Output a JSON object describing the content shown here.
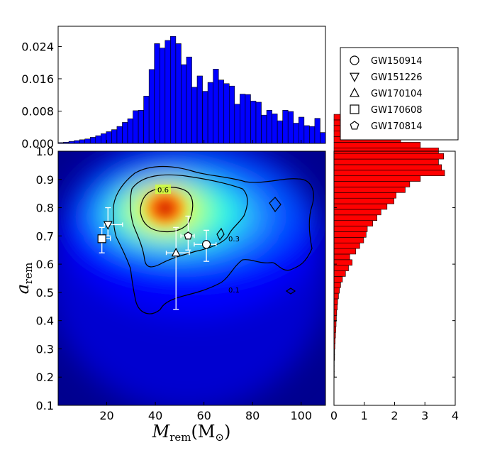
{
  "chart_data": [
    {
      "type": "heatmap",
      "xlabel": "M",
      "xlabel_sub": "rem",
      "xlabel_unit_open": "(M",
      "xlabel_unit_sub": "⊙",
      "xlabel_unit_close": ")",
      "ylabel": "a",
      "ylabel_sub": "rem",
      "xlim": [
        0,
        110
      ],
      "ylim": [
        0.1,
        1.0
      ],
      "x_ticks": [
        20,
        40,
        60,
        80,
        100
      ],
      "y_ticks": [
        0.1,
        0.2,
        0.3,
        0.4,
        0.5,
        0.6,
        0.7,
        0.8,
        0.9,
        1.0
      ],
      "contour_labels": [
        "0.6",
        "0.3",
        "0.1"
      ],
      "colormap": [
        "#00008f",
        "#0000ff",
        "#007fff",
        "#00ffff",
        "#7fff7f",
        "#ffff00",
        "#ff7f00",
        "#ff0000",
        "#7f0000"
      ],
      "density_peak": {
        "x": 44,
        "y": 0.79
      },
      "events": [
        {
          "name": "GW150914",
          "marker": "circle",
          "x": 61,
          "y": 0.67,
          "x_err": [
            5,
            4
          ],
          "y_err": [
            0.06,
            0.05
          ]
        },
        {
          "name": "GW151226",
          "marker": "triangle-down",
          "x": 20.5,
          "y": 0.74,
          "x_err": [
            1.5,
            6
          ],
          "y_err": [
            0.04,
            0.06
          ]
        },
        {
          "name": "GW170104",
          "marker": "triangle-up",
          "x": 48.5,
          "y": 0.64,
          "x_err": [
            4,
            5.5
          ],
          "y_err": [
            0.2,
            0.09
          ]
        },
        {
          "name": "GW170608",
          "marker": "square",
          "x": 18,
          "y": 0.69,
          "x_err": [
            1,
            3.5
          ],
          "y_err": [
            0.05,
            0.04
          ]
        },
        {
          "name": "GW170814",
          "marker": "pentagon",
          "x": 53.5,
          "y": 0.7,
          "x_err": [
            3,
            2.5
          ],
          "y_err": [
            0.05,
            0.07
          ]
        }
      ]
    },
    {
      "type": "bar",
      "orientation": "vertical",
      "color": "#0000ff",
      "y_ticks": [
        "0.000",
        "0.008",
        "0.016",
        "0.024"
      ],
      "ylim": [
        0,
        0.029
      ],
      "xlim": [
        0,
        110
      ],
      "bin_width": 2.2,
      "values": [
        0.0002,
        0.0003,
        0.0005,
        0.0007,
        0.0009,
        0.0011,
        0.0015,
        0.0019,
        0.0024,
        0.0029,
        0.0034,
        0.0042,
        0.0052,
        0.0061,
        0.0081,
        0.0082,
        0.0117,
        0.0183,
        0.0247,
        0.0236,
        0.0255,
        0.0265,
        0.0247,
        0.0195,
        0.0214,
        0.0139,
        0.0167,
        0.0129,
        0.0151,
        0.0184,
        0.0157,
        0.0148,
        0.0142,
        0.0097,
        0.0122,
        0.0121,
        0.0105,
        0.0102,
        0.007,
        0.0082,
        0.0073,
        0.0056,
        0.0082,
        0.0079,
        0.005,
        0.0065,
        0.0044,
        0.0042,
        0.0062,
        0.0027,
        0.0041,
        0.0012,
        0.0022
      ]
    },
    {
      "type": "bar",
      "orientation": "horizontal",
      "color": "#ff0000",
      "x_ticks": [
        0,
        1,
        2,
        3,
        4
      ],
      "xlim": [
        0,
        4
      ],
      "ylim": [
        0.1,
        1.0
      ],
      "bin_edges_start": 0.2,
      "bin_height": 0.0198,
      "values": [
        0.01,
        0.01,
        0.01,
        0.02,
        0.02,
        0.03,
        0.04,
        0.05,
        0.06,
        0.07,
        0.08,
        0.09,
        0.11,
        0.12,
        0.15,
        0.18,
        0.22,
        0.28,
        0.38,
        0.48,
        0.6,
        0.52,
        0.72,
        0.85,
        0.98,
        1.06,
        1.1,
        1.28,
        1.42,
        1.55,
        1.75,
        1.98,
        2.05,
        2.35,
        2.5,
        2.85,
        3.65,
        3.55,
        3.45,
        3.62,
        3.45,
        2.85,
        2.2,
        1.6,
        1.0,
        0.6,
        0.25
      ]
    }
  ],
  "legend": {
    "items": [
      {
        "label": "GW150914",
        "marker": "circle"
      },
      {
        "label": "GW151226",
        "marker": "triangle-down"
      },
      {
        "label": "GW170104",
        "marker": "triangle-up"
      },
      {
        "label": "GW170608",
        "marker": "square"
      },
      {
        "label": "GW170814",
        "marker": "pentagon"
      }
    ]
  }
}
